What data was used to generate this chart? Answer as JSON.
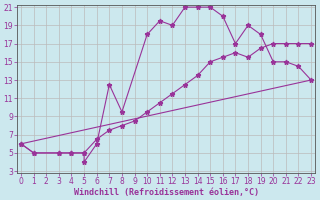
{
  "xlabel": "Windchill (Refroidissement éolien,°C)",
  "background_color": "#cce8ee",
  "grid_color": "#bbbbbb",
  "line_color": "#993399",
  "xmin": 0,
  "xmax": 23,
  "ymin": 3,
  "ymax": 21,
  "series1_x": [
    0,
    1,
    3,
    4,
    5,
    5,
    6,
    7,
    8,
    10,
    11,
    12,
    13,
    14,
    15,
    16,
    17,
    18,
    19,
    20,
    21,
    22,
    23
  ],
  "series1_y": [
    6,
    5,
    5,
    5,
    5,
    4,
    6,
    12.5,
    9.5,
    18,
    19.5,
    19,
    21,
    21,
    21,
    20,
    17,
    19,
    18,
    15,
    15,
    14.5,
    13
  ],
  "series2_x": [
    0,
    1,
    3,
    4,
    5,
    6,
    7,
    8,
    9,
    10,
    11,
    12,
    13,
    14,
    15,
    16,
    17,
    18,
    19,
    20,
    21,
    22,
    23
  ],
  "series2_y": [
    6,
    5,
    5,
    5,
    5,
    6.5,
    7.5,
    8,
    8.5,
    9.5,
    10.5,
    11.5,
    12.5,
    13.5,
    15,
    15.5,
    16,
    15.5,
    16.5,
    17,
    17,
    17,
    17
  ],
  "series3_x": [
    0,
    23
  ],
  "series3_y": [
    6,
    13
  ],
  "yticks": [
    3,
    5,
    7,
    9,
    11,
    13,
    15,
    17,
    19,
    21
  ],
  "xticks": [
    0,
    1,
    2,
    3,
    4,
    5,
    6,
    7,
    8,
    9,
    10,
    11,
    12,
    13,
    14,
    15,
    16,
    17,
    18,
    19,
    20,
    21,
    22,
    23
  ],
  "tick_fontsize": 5.5,
  "xlabel_fontsize": 6,
  "marker": "*",
  "markersize": 3.5,
  "linewidth": 0.8
}
